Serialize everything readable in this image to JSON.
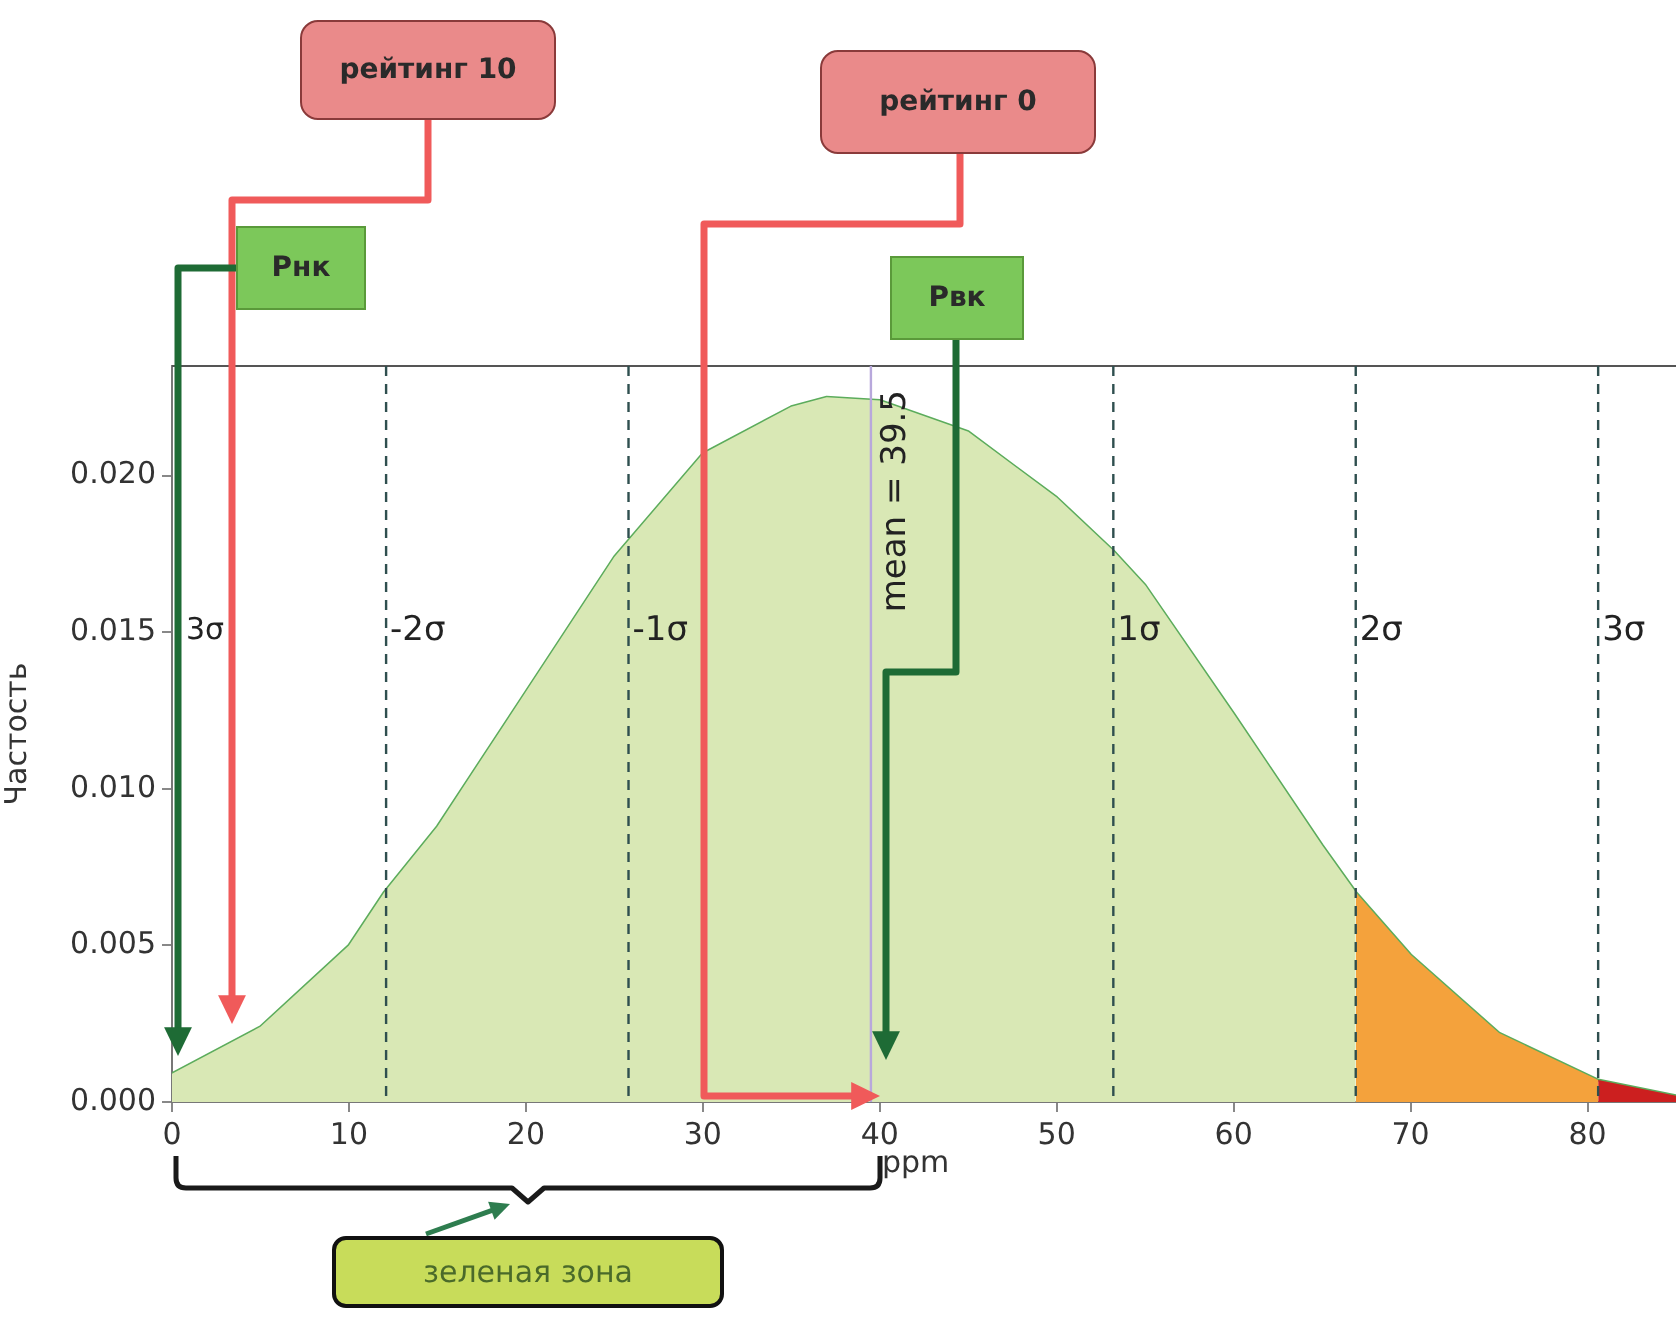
{
  "chart_data": {
    "type": "area",
    "xlabel": "ppm",
    "ylabel": "Частость",
    "xlim": [
      0,
      85
    ],
    "ylim": [
      0,
      0.0235
    ],
    "xticks": [
      0,
      10,
      20,
      30,
      40,
      50,
      60,
      70,
      80
    ],
    "yticks": [
      {
        "value": 0,
        "label": "0.000"
      },
      {
        "value": 0.005,
        "label": "0.005"
      },
      {
        "value": 0.01,
        "label": "0.010"
      },
      {
        "value": 0.015,
        "label": "0.015"
      },
      {
        "value": 0.02,
        "label": "0.020"
      }
    ],
    "series": [
      {
        "color": "#d9e8b5",
        "x": [
          0,
          5,
          10,
          12,
          15,
          20,
          25,
          30,
          35,
          37,
          40,
          45,
          50,
          53.2,
          55,
          60,
          65,
          66.9
        ],
        "values": [
          0.0009,
          0.0024,
          0.005,
          0.0067,
          0.0088,
          0.0131,
          0.0174,
          0.0207,
          0.0222,
          0.0225,
          0.0224,
          0.0214,
          0.0193,
          0.0176,
          0.0165,
          0.0124,
          0.0082,
          0.0067
        ]
      },
      {
        "color": "#f4a23c",
        "x": [
          66.9,
          70,
          75,
          80.6
        ],
        "values": [
          0.0067,
          0.0047,
          0.0022,
          0.0007
        ]
      },
      {
        "color": "#cc1f1f",
        "x": [
          80.6,
          85
        ],
        "values": [
          0.0007,
          0.0002
        ]
      },
      {
        "type": "line",
        "color": "#5cac5c",
        "x": [
          0,
          5,
          10,
          12,
          15,
          20,
          25,
          30,
          35,
          37,
          40,
          45,
          50,
          53.2,
          55,
          60,
          65,
          66.9,
          70,
          75,
          80.6,
          85
        ],
        "values": [
          0.0009,
          0.0024,
          0.005,
          0.0067,
          0.0088,
          0.0131,
          0.0174,
          0.0207,
          0.0222,
          0.0225,
          0.0224,
          0.0214,
          0.0193,
          0.0176,
          0.0165,
          0.0124,
          0.0082,
          0.0067,
          0.0047,
          0.0022,
          0.0007,
          0.0002
        ]
      }
    ],
    "ref_lines": [
      {
        "axis": "x",
        "value": 12.1,
        "label": "-2σ",
        "color": "#2f4f4f",
        "line_style": "dashed"
      },
      {
        "axis": "x",
        "value": 25.8,
        "label": "-1σ",
        "color": "#2f4f4f",
        "line_style": "dashed"
      },
      {
        "axis": "x",
        "value": 39.5,
        "label": "mean = 39.5",
        "color": "#b8a8dc",
        "line_style": "solid"
      },
      {
        "axis": "x",
        "value": 53.2,
        "label": "1σ",
        "color": "#2f4f4f",
        "line_style": "dashed"
      },
      {
        "axis": "x",
        "value": 66.9,
        "label": "2σ",
        "color": "#2f4f4f",
        "line_style": "dashed"
      },
      {
        "axis": "x",
        "value": 80.6,
        "label": "3σ",
        "color": "#2f4f4f",
        "line_style": "dashed"
      }
    ],
    "annotations": [
      "3σ",
      "рейтинг 10",
      "Рнк",
      "рейтинг 0",
      "Рвк",
      "зеленая зона"
    ],
    "legend": false
  }
}
